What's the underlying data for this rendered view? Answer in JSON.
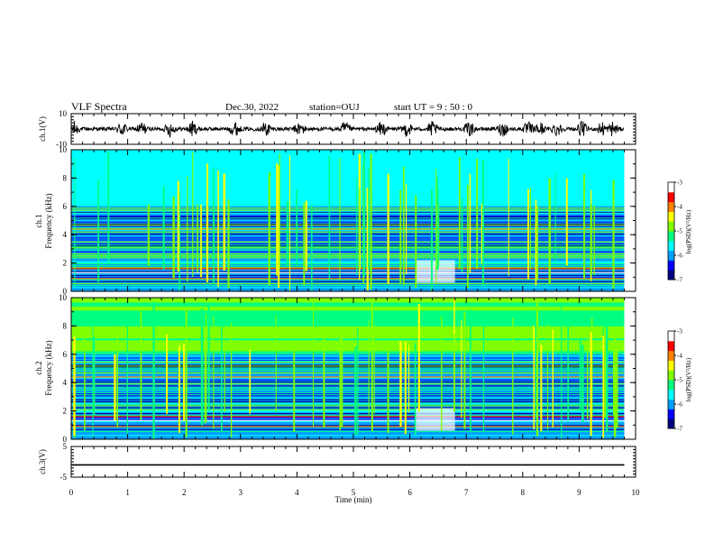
{
  "header": {
    "title": "VLF Spectra",
    "date": "Dec.30, 2022",
    "station": "station=OUJ",
    "start": "start  UT =  9 : 50 : 0"
  },
  "chart_data": {
    "type": "heatmap",
    "title": "VLF Spectra",
    "x_axis": {
      "label": "Time  (min)",
      "range": [
        0,
        10
      ],
      "ticks": [
        "0",
        "1",
        "2",
        "3",
        "4",
        "5",
        "6",
        "7",
        "8",
        "9",
        "10"
      ]
    },
    "panels": [
      {
        "name": "ch.1(V)",
        "type": "waveform",
        "ylim": [
          -10,
          10
        ],
        "ticks": [
          "10",
          "-10"
        ],
        "data_extent_min": 9.8
      },
      {
        "name": "ch.1",
        "type": "spectrogram",
        "ylabel": "Frequency  (kHz)",
        "ylim": [
          0,
          10
        ],
        "ticks": [
          "0",
          "2",
          "4",
          "6",
          "8",
          "10"
        ],
        "data_extent_min": 9.8
      },
      {
        "name": "ch.2",
        "type": "spectrogram",
        "ylabel": "Frequency  (kHz)",
        "ylim": [
          0,
          10
        ],
        "ticks": [
          "0",
          "2",
          "4",
          "6",
          "8",
          "10"
        ],
        "data_extent_min": 9.8
      },
      {
        "name": "ch.3(V)",
        "type": "waveform",
        "ylim": [
          -5,
          5
        ],
        "ticks": [
          "5",
          "-5"
        ],
        "constant_value": -1,
        "data_extent_min": 9.8
      }
    ],
    "colorbar": {
      "label": "log(PSD)(V²/Hz)",
      "range": [
        -7,
        -3
      ],
      "ticks": [
        "-3",
        "-4",
        "-5",
        "-6",
        "-7"
      ],
      "colormap": [
        "#000080",
        "#0000ff",
        "#00a0ff",
        "#00ffff",
        "#00ff80",
        "#80ff00",
        "#ffff00",
        "#ff8000",
        "#ff0000",
        "#ffffff"
      ]
    },
    "grid": false,
    "legend": "none"
  }
}
